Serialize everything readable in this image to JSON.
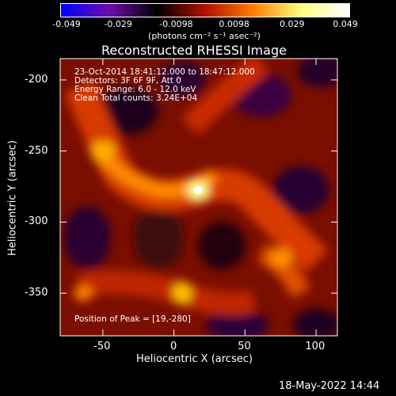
{
  "colorbar": {
    "tick_labels": [
      "-0.049",
      "-0.029",
      "-0.0098",
      "0.0098",
      "0.029",
      "0.049"
    ],
    "units_label": "(photons cm⁻² s⁻¹ asec⁻²)",
    "colormap_stops": [
      "#0000ff",
      "#6a0dad",
      "#000000",
      "#b11000",
      "#ff7d00",
      "#ffff80",
      "#ffffff"
    ]
  },
  "image": {
    "title": "Reconstructed RHESSI Image",
    "annotation_lines": [
      "23-Oct-2014 18:41:12.000 to 18:47:12.000",
      "Detectors: 3F 6F 9F, Att 0",
      "Energy Range: 6.0 - 12.0 keV",
      "Clean     Total counts: 3.24E+04"
    ],
    "peak_label": "Position of Peak = [19,-280]"
  },
  "chart_data": {
    "type": "heatmap",
    "xlabel": "Heliocentric X (arcsec)",
    "ylabel": "Heliocentric Y (arcsec)",
    "xlim": [
      -80,
      115
    ],
    "ylim": [
      -380,
      -185
    ],
    "x_ticks": [
      -50,
      0,
      50,
      100
    ],
    "y_ticks": [
      -200,
      -250,
      -300,
      -350
    ],
    "x_tick_labels": [
      "-50",
      "0",
      "50",
      "100"
    ],
    "y_tick_labels": [
      "-200",
      "-250",
      "-300",
      "-350"
    ],
    "peak": {
      "x": 19,
      "y": -280
    }
  },
  "footer": {
    "timestamp": "18-May-2022 14:44"
  }
}
